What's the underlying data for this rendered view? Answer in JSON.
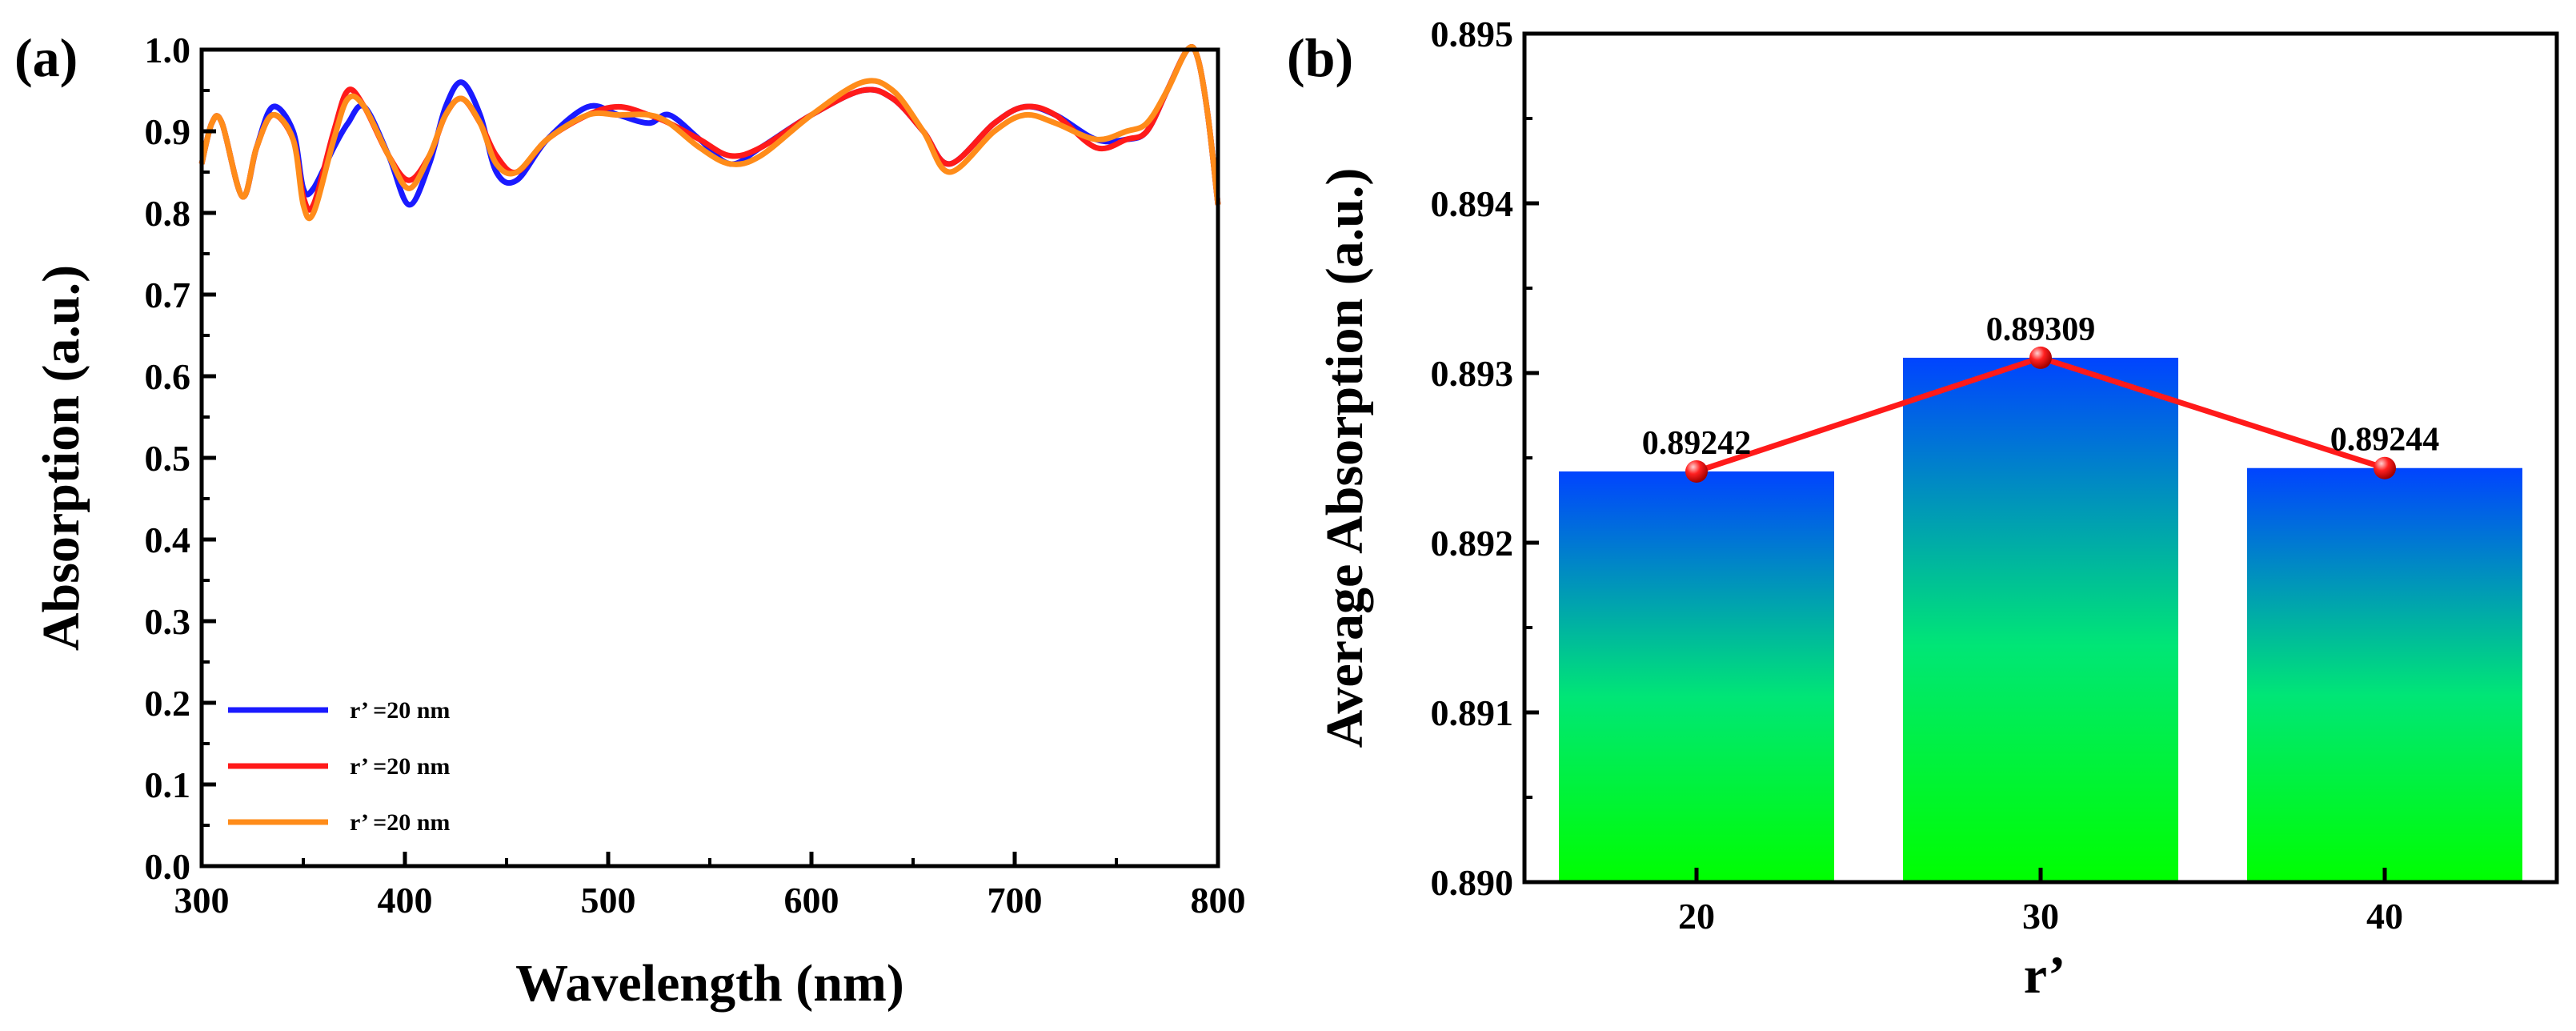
{
  "figure": {
    "panel_a_label": "(a)",
    "panel_b_label": "(b)"
  },
  "chart_data": [
    {
      "type": "line",
      "panel": "(a)",
      "xlabel": "Wavelength (nm)",
      "ylabel": "Absorption (a.u.)",
      "xlim": [
        300,
        800
      ],
      "ylim": [
        0.0,
        1.0
      ],
      "xticks": [
        "300",
        "400",
        "500",
        "600",
        "700",
        "800"
      ],
      "xtick_values": [
        300,
        400,
        500,
        600,
        700,
        800
      ],
      "yticks": [
        "0.0",
        "0.1",
        "0.2",
        "0.3",
        "0.4",
        "0.5",
        "0.6",
        "0.7",
        "0.8",
        "0.9",
        "1.0"
      ],
      "ytick_values": [
        0.0,
        0.1,
        0.2,
        0.3,
        0.4,
        0.5,
        0.6,
        0.7,
        0.8,
        0.9,
        1.0
      ],
      "grid": false,
      "legend_position": "bottom-left",
      "x": [
        300,
        305,
        310,
        320,
        327,
        335,
        345,
        350,
        355,
        365,
        372,
        380,
        392,
        402,
        412,
        420,
        428,
        437,
        445,
        455,
        470,
        490,
        505,
        520,
        530,
        545,
        560,
        575,
        600,
        625,
        640,
        655,
        668,
        690,
        705,
        720,
        740,
        755,
        765,
        775,
        785,
        790,
        795,
        800
      ],
      "series": [
        {
          "name": "r’ =20 nm",
          "color": "#1a1aff",
          "values": [
            0.86,
            0.91,
            0.91,
            0.82,
            0.88,
            0.93,
            0.9,
            0.83,
            0.83,
            0.88,
            0.91,
            0.93,
            0.87,
            0.81,
            0.86,
            0.93,
            0.96,
            0.92,
            0.85,
            0.84,
            0.89,
            0.93,
            0.92,
            0.91,
            0.92,
            0.89,
            0.86,
            0.88,
            0.92,
            0.95,
            0.94,
            0.9,
            0.86,
            0.91,
            0.93,
            0.92,
            0.89,
            0.89,
            0.9,
            0.95,
            1.0,
            0.99,
            0.92,
            0.81
          ]
        },
        {
          "name": "r’ =20 nm",
          "color": "#ff1a1a",
          "values": [
            0.86,
            0.91,
            0.91,
            0.82,
            0.88,
            0.92,
            0.89,
            0.82,
            0.81,
            0.9,
            0.95,
            0.93,
            0.87,
            0.84,
            0.87,
            0.92,
            0.94,
            0.91,
            0.87,
            0.85,
            0.89,
            0.92,
            0.93,
            0.92,
            0.91,
            0.89,
            0.87,
            0.88,
            0.92,
            0.95,
            0.94,
            0.9,
            0.86,
            0.91,
            0.93,
            0.92,
            0.88,
            0.89,
            0.9,
            0.95,
            1.0,
            0.99,
            0.92,
            0.81
          ]
        },
        {
          "name": "r’ =20 nm",
          "color": "#ff8c1a",
          "values": [
            0.86,
            0.91,
            0.91,
            0.82,
            0.88,
            0.92,
            0.89,
            0.81,
            0.8,
            0.89,
            0.94,
            0.93,
            0.87,
            0.83,
            0.87,
            0.92,
            0.94,
            0.91,
            0.86,
            0.85,
            0.89,
            0.92,
            0.92,
            0.92,
            0.91,
            0.88,
            0.86,
            0.87,
            0.92,
            0.96,
            0.95,
            0.9,
            0.85,
            0.9,
            0.92,
            0.91,
            0.89,
            0.9,
            0.91,
            0.95,
            1.0,
            0.99,
            0.92,
            0.81
          ]
        }
      ]
    },
    {
      "type": "bar",
      "panel": "(b)",
      "xlabel": "r’",
      "ylabel": "Average Absorption (a.u.)",
      "categories": [
        "20",
        "30",
        "40"
      ],
      "values": [
        0.89242,
        0.89309,
        0.89244
      ],
      "data_labels": [
        "0.89242",
        "0.89309",
        "0.89244"
      ],
      "ylim": [
        0.89,
        0.895
      ],
      "yticks": [
        "0.890",
        "0.891",
        "0.892",
        "0.893",
        "0.894",
        "0.895"
      ],
      "ytick_values": [
        0.89,
        0.891,
        0.892,
        0.893,
        0.894,
        0.895
      ],
      "grid": false,
      "bar_gradient": [
        "#0044ff",
        "#00e676",
        "#00ff00"
      ],
      "overlay_line_color": "#ff1a1a"
    }
  ]
}
